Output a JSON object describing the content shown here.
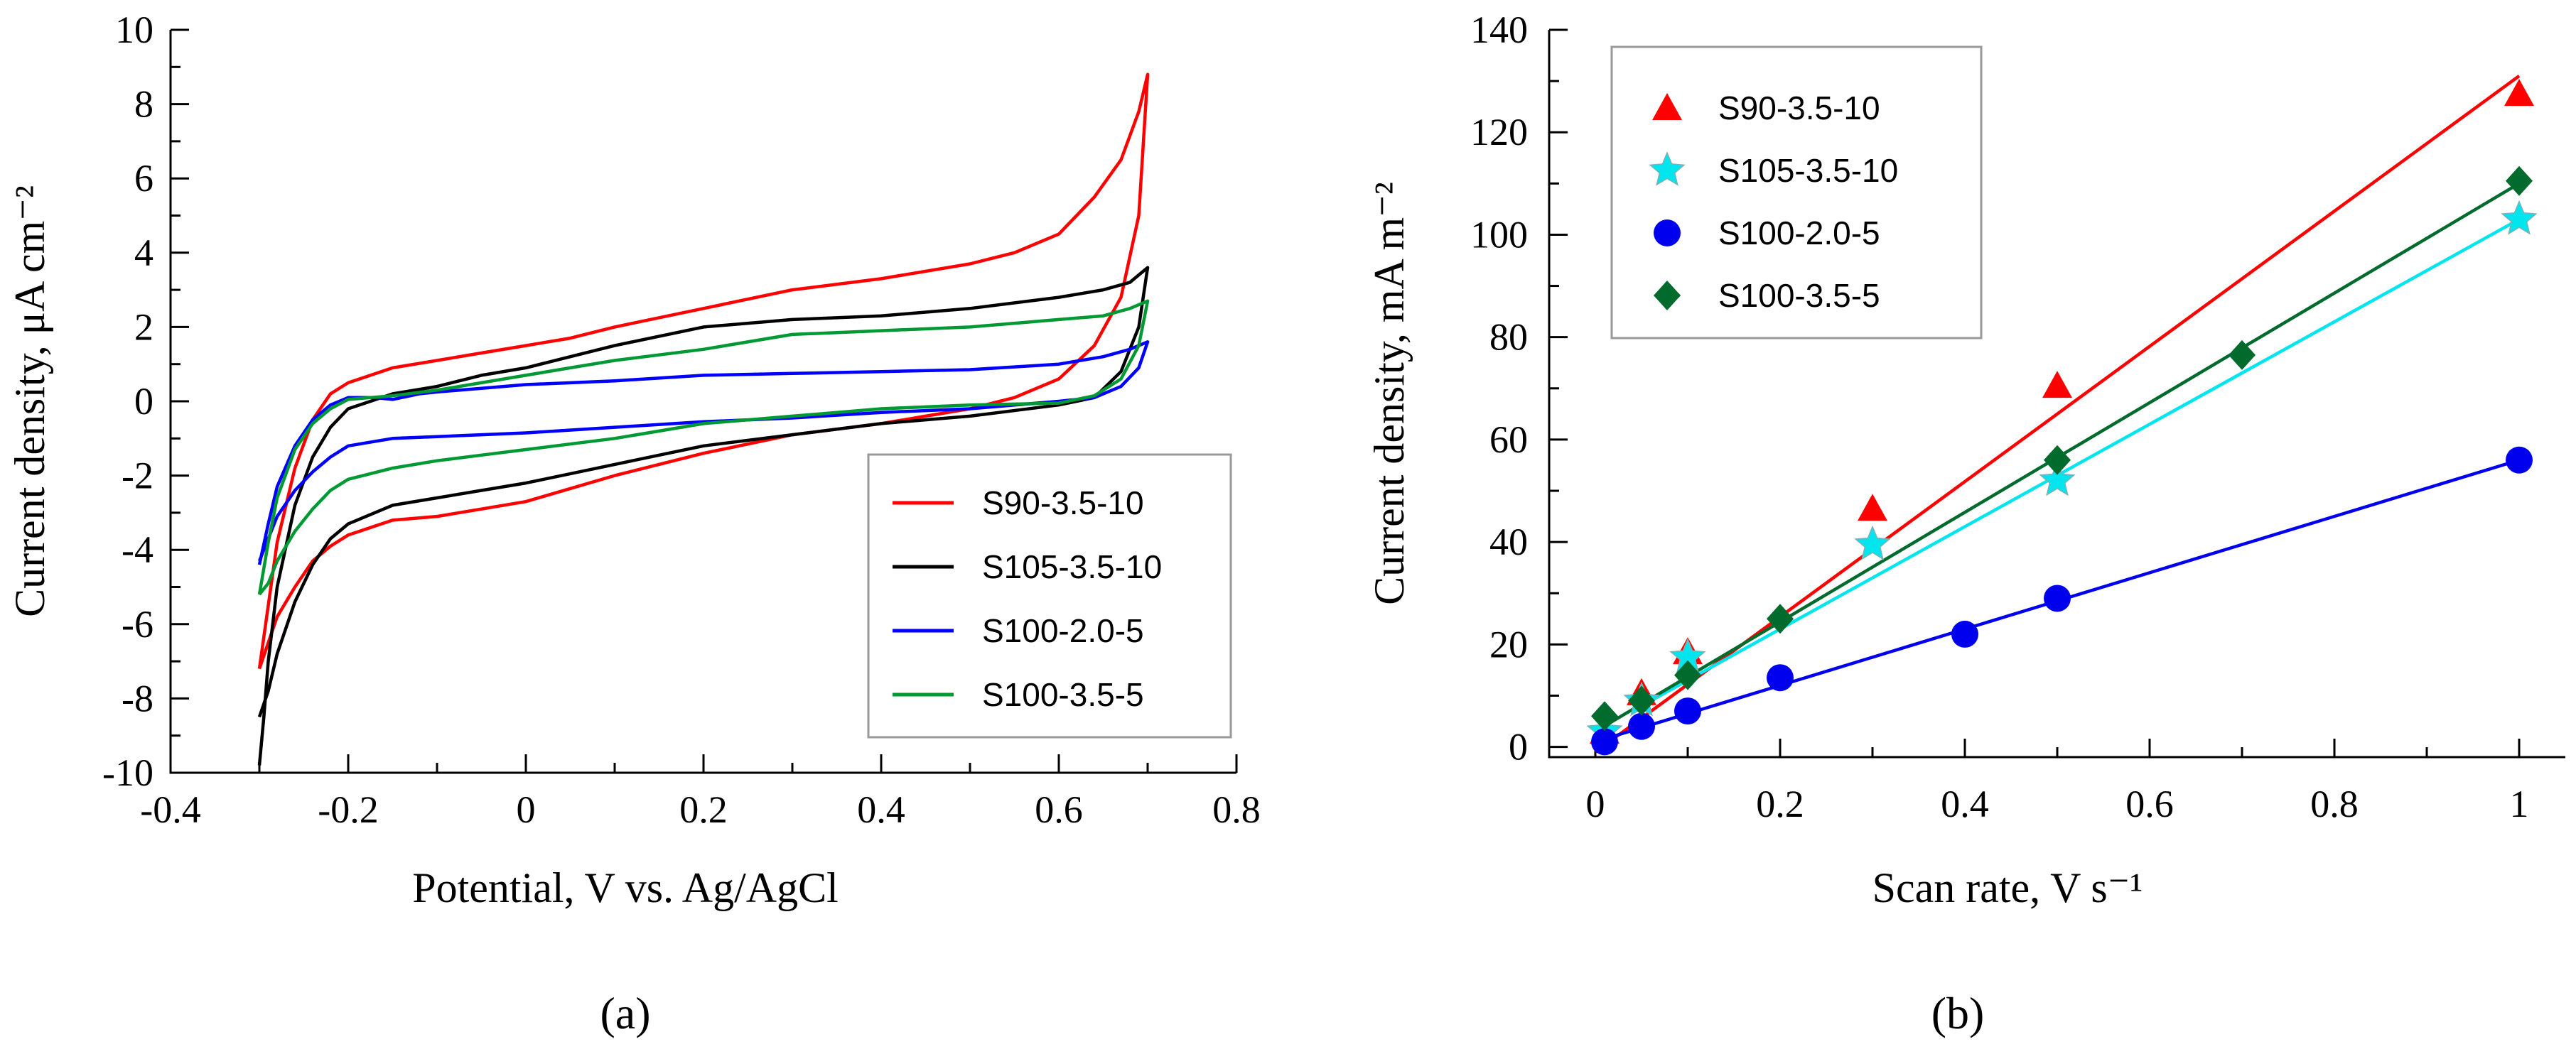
{
  "chart_data": [
    {
      "panel": "a",
      "type": "line",
      "panel_label": "(a)",
      "xlabel": "Potential, V vs. Ag/AgCl",
      "ylabel": "Current density, μA cm⁻²",
      "xlim": [
        -0.4,
        0.8
      ],
      "ylim": [
        -10,
        10
      ],
      "xticks": [
        -0.4,
        -0.2,
        0,
        0.2,
        0.4,
        0.6,
        0.8
      ],
      "xtick_labels": [
        "-0.4",
        "-0.2",
        "0",
        "0.2",
        "0.4",
        "0.6",
        "0.8"
      ],
      "yticks": [
        -10,
        -8,
        -6,
        -4,
        -2,
        0,
        2,
        4,
        6,
        8,
        10
      ],
      "ytick_labels": [
        "-10",
        "-8",
        "-6",
        "-4",
        "-2",
        "0",
        "2",
        "4",
        "6",
        "8",
        "10"
      ],
      "legend_position": "bottom-right",
      "series": [
        {
          "name": "S90-3.5-10",
          "color": "#ff0000",
          "x": [
            -0.3,
            -0.29,
            -0.28,
            -0.26,
            -0.24,
            -0.22,
            -0.2,
            -0.15,
            -0.1,
            -0.05,
            0,
            0.05,
            0.1,
            0.2,
            0.3,
            0.4,
            0.5,
            0.55,
            0.6,
            0.64,
            0.67,
            0.69,
            0.7,
            0.69,
            0.67,
            0.64,
            0.6,
            0.55,
            0.5,
            0.45,
            0.4,
            0.3,
            0.2,
            0.1,
            0,
            -0.05,
            -0.1,
            -0.15,
            -0.2,
            -0.22,
            -0.24,
            -0.26,
            -0.28,
            -0.29,
            -0.3
          ],
          "y": [
            -7.2,
            -5.5,
            -3.8,
            -1.8,
            -0.5,
            0.2,
            0.5,
            0.9,
            1.1,
            1.3,
            1.5,
            1.7,
            2.0,
            2.5,
            3.0,
            3.3,
            3.7,
            4.0,
            4.5,
            5.5,
            6.5,
            7.8,
            8.8,
            5.0,
            2.8,
            1.5,
            0.6,
            0.1,
            -0.2,
            -0.4,
            -0.6,
            -0.9,
            -1.4,
            -2.0,
            -2.7,
            -2.9,
            -3.1,
            -3.2,
            -3.6,
            -3.9,
            -4.3,
            -5.0,
            -5.8,
            -6.5,
            -7.2
          ]
        },
        {
          "name": "S105-3.5-10",
          "color": "#000000",
          "x": [
            -0.3,
            -0.295,
            -0.29,
            -0.28,
            -0.26,
            -0.24,
            -0.22,
            -0.2,
            -0.15,
            -0.1,
            -0.05,
            0,
            0.05,
            0.1,
            0.2,
            0.3,
            0.4,
            0.5,
            0.6,
            0.65,
            0.68,
            0.7,
            0.69,
            0.67,
            0.64,
            0.6,
            0.5,
            0.4,
            0.3,
            0.2,
            0.1,
            0,
            -0.05,
            -0.1,
            -0.15,
            -0.2,
            -0.22,
            -0.24,
            -0.26,
            -0.28,
            -0.29,
            -0.3
          ],
          "y": [
            -9.8,
            -8.5,
            -7.0,
            -5.0,
            -2.8,
            -1.5,
            -0.7,
            -0.2,
            0.2,
            0.4,
            0.7,
            0.9,
            1.2,
            1.5,
            2.0,
            2.2,
            2.3,
            2.5,
            2.8,
            3.0,
            3.2,
            3.6,
            2.0,
            0.8,
            0.1,
            -0.1,
            -0.4,
            -0.6,
            -0.9,
            -1.2,
            -1.7,
            -2.2,
            -2.4,
            -2.6,
            -2.8,
            -3.3,
            -3.7,
            -4.4,
            -5.4,
            -6.8,
            -7.8,
            -8.5
          ]
        },
        {
          "name": "S100-2.0-5",
          "color": "#0000ff",
          "x": [
            -0.3,
            -0.29,
            -0.28,
            -0.26,
            -0.24,
            -0.22,
            -0.2,
            -0.17,
            -0.15,
            -0.12,
            -0.1,
            -0.05,
            0,
            0.1,
            0.2,
            0.3,
            0.4,
            0.5,
            0.6,
            0.65,
            0.68,
            0.7,
            0.69,
            0.67,
            0.64,
            0.6,
            0.5,
            0.4,
            0.3,
            0.2,
            0.1,
            0,
            -0.05,
            -0.1,
            -0.15,
            -0.2,
            -0.22,
            -0.24,
            -0.26,
            -0.28,
            -0.29,
            -0.3
          ],
          "y": [
            -4.4,
            -3.3,
            -2.3,
            -1.2,
            -0.5,
            -0.1,
            0.1,
            0.1,
            0.05,
            0.2,
            0.25,
            0.35,
            0.45,
            0.55,
            0.7,
            0.75,
            0.8,
            0.85,
            1.0,
            1.2,
            1.4,
            1.6,
            0.9,
            0.4,
            0.1,
            0.0,
            -0.2,
            -0.3,
            -0.45,
            -0.55,
            -0.7,
            -0.85,
            -0.9,
            -0.95,
            -1.0,
            -1.2,
            -1.5,
            -1.9,
            -2.4,
            -3.1,
            -3.7,
            -4.3
          ]
        },
        {
          "name": "S100-3.5-5",
          "color": "#009933",
          "x": [
            -0.3,
            -0.29,
            -0.28,
            -0.26,
            -0.24,
            -0.22,
            -0.2,
            -0.15,
            -0.1,
            -0.05,
            0,
            0.05,
            0.1,
            0.2,
            0.3,
            0.4,
            0.5,
            0.6,
            0.65,
            0.68,
            0.7,
            0.69,
            0.67,
            0.64,
            0.6,
            0.5,
            0.4,
            0.3,
            0.2,
            0.1,
            0,
            -0.05,
            -0.1,
            -0.15,
            -0.2,
            -0.22,
            -0.24,
            -0.26,
            -0.28,
            -0.29,
            -0.3
          ],
          "y": [
            -5.2,
            -3.8,
            -2.6,
            -1.3,
            -0.6,
            -0.2,
            0.05,
            0.15,
            0.3,
            0.5,
            0.7,
            0.9,
            1.1,
            1.4,
            1.8,
            1.9,
            2.0,
            2.2,
            2.3,
            2.5,
            2.7,
            1.5,
            0.6,
            0.15,
            -0.05,
            -0.1,
            -0.2,
            -0.4,
            -0.6,
            -1.0,
            -1.3,
            -1.45,
            -1.6,
            -1.8,
            -2.1,
            -2.4,
            -2.9,
            -3.5,
            -4.3,
            -4.9,
            -5.2
          ]
        }
      ]
    },
    {
      "panel": "b",
      "type": "scatter",
      "panel_label": "(b)",
      "xlabel": "Scan rate, V s⁻¹",
      "ylabel": "Current density, mA m⁻²",
      "xlim": [
        -0.05,
        1.05
      ],
      "ylim": [
        -2,
        140
      ],
      "xticks": [
        0,
        0.2,
        0.4,
        0.6,
        0.8,
        1
      ],
      "xtick_labels": [
        "0",
        "0.2",
        "0.4",
        "0.6",
        "0.8",
        "1"
      ],
      "yticks": [
        0,
        20,
        40,
        60,
        80,
        100,
        120,
        140
      ],
      "ytick_labels": [
        "0",
        "20",
        "40",
        "60",
        "80",
        "100",
        "120",
        "140"
      ],
      "legend_position": "top-left",
      "series": [
        {
          "name": "S90-3.5-10",
          "color": "#ff0000",
          "marker": "triangle",
          "x": [
            0.01,
            0.05,
            0.1,
            0.3,
            0.5,
            1.0
          ],
          "y": [
            3,
            10.5,
            18.5,
            46.5,
            70.5,
            127.5
          ],
          "fit": {
            "x": [
              0,
              1.0
            ],
            "y": [
              -1,
              131
            ]
          }
        },
        {
          "name": "S105-3.5-10",
          "color": "#00e5ee",
          "marker": "star",
          "x": [
            0.01,
            0.05,
            0.1,
            0.3,
            0.5,
            1.0
          ],
          "y": [
            3,
            9,
            17.5,
            39.5,
            52,
            103
          ],
          "fit": {
            "x": [
              0.05,
              1.0
            ],
            "y": [
              8,
              103
            ]
          }
        },
        {
          "name": "S100-2.0-5",
          "color": "#0000ee",
          "marker": "circle",
          "x": [
            0.01,
            0.05,
            0.1,
            0.2,
            0.4,
            0.5,
            1.0
          ],
          "y": [
            1,
            4,
            7,
            13.5,
            22,
            29,
            56
          ],
          "fit": {
            "x": [
              0,
              1.0
            ],
            "y": [
              1,
              56
            ]
          }
        },
        {
          "name": "S100-3.5-5",
          "color": "#006b2d",
          "marker": "diamond",
          "x": [
            0.01,
            0.05,
            0.1,
            0.2,
            0.5,
            0.7,
            1.0
          ],
          "y": [
            6,
            9,
            14,
            25,
            56,
            76.5,
            110.5
          ],
          "fit": {
            "x": [
              0,
              1.0
            ],
            "y": [
              3,
              110
            ]
          }
        }
      ]
    }
  ]
}
